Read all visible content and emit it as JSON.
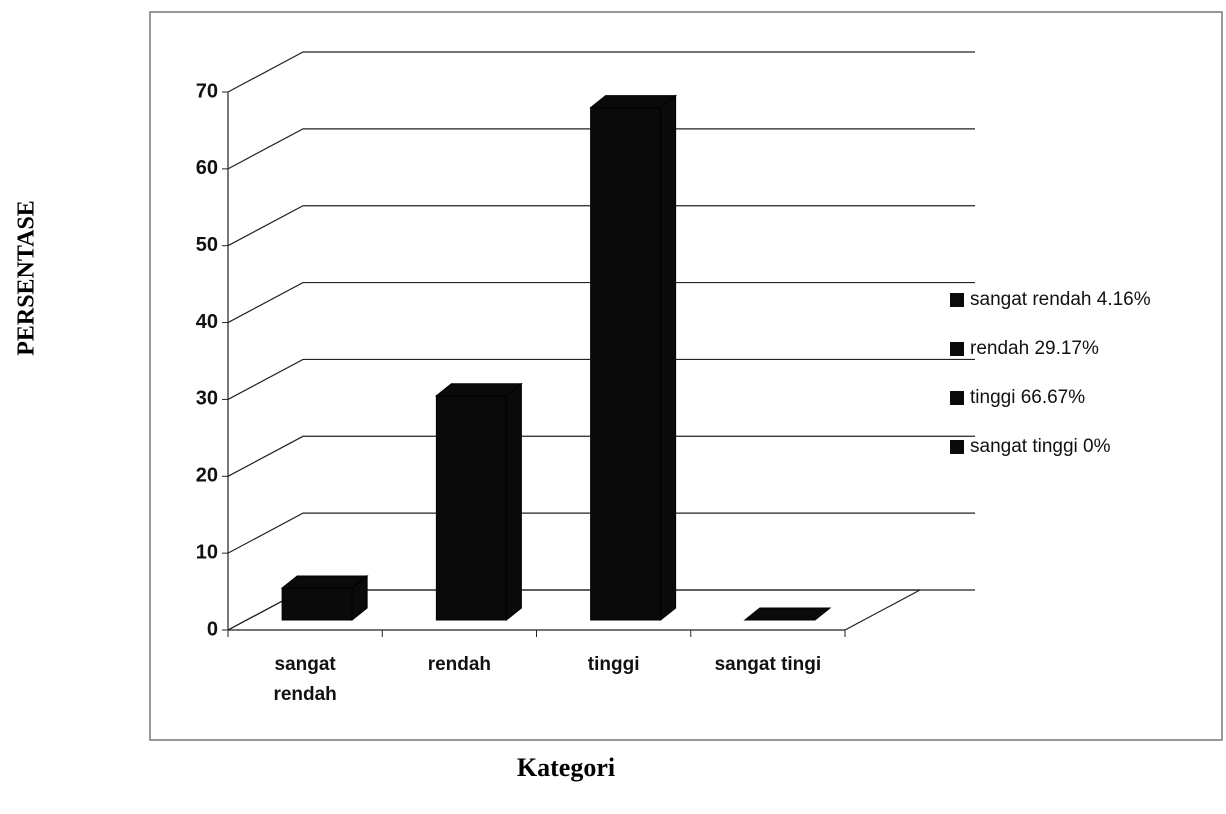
{
  "chart_data": {
    "type": "bar3d",
    "y_label": "PERSENTASE",
    "x_label": "Kategori",
    "categories": [
      "sangat rendah",
      "rendah",
      "tinggi",
      "sangat tingi"
    ],
    "values": [
      4.16,
      29.17,
      66.67,
      0
    ],
    "color": "#0a0a0a",
    "legend": [
      "sangat rendah 4.16%",
      "rendah 29.17%",
      "tinggi 66.67%",
      "sangat tinggi 0%"
    ],
    "ylim": [
      0,
      70
    ],
    "yticks": [
      0,
      10,
      20,
      30,
      40,
      50,
      60,
      70
    ],
    "grid": true
  }
}
